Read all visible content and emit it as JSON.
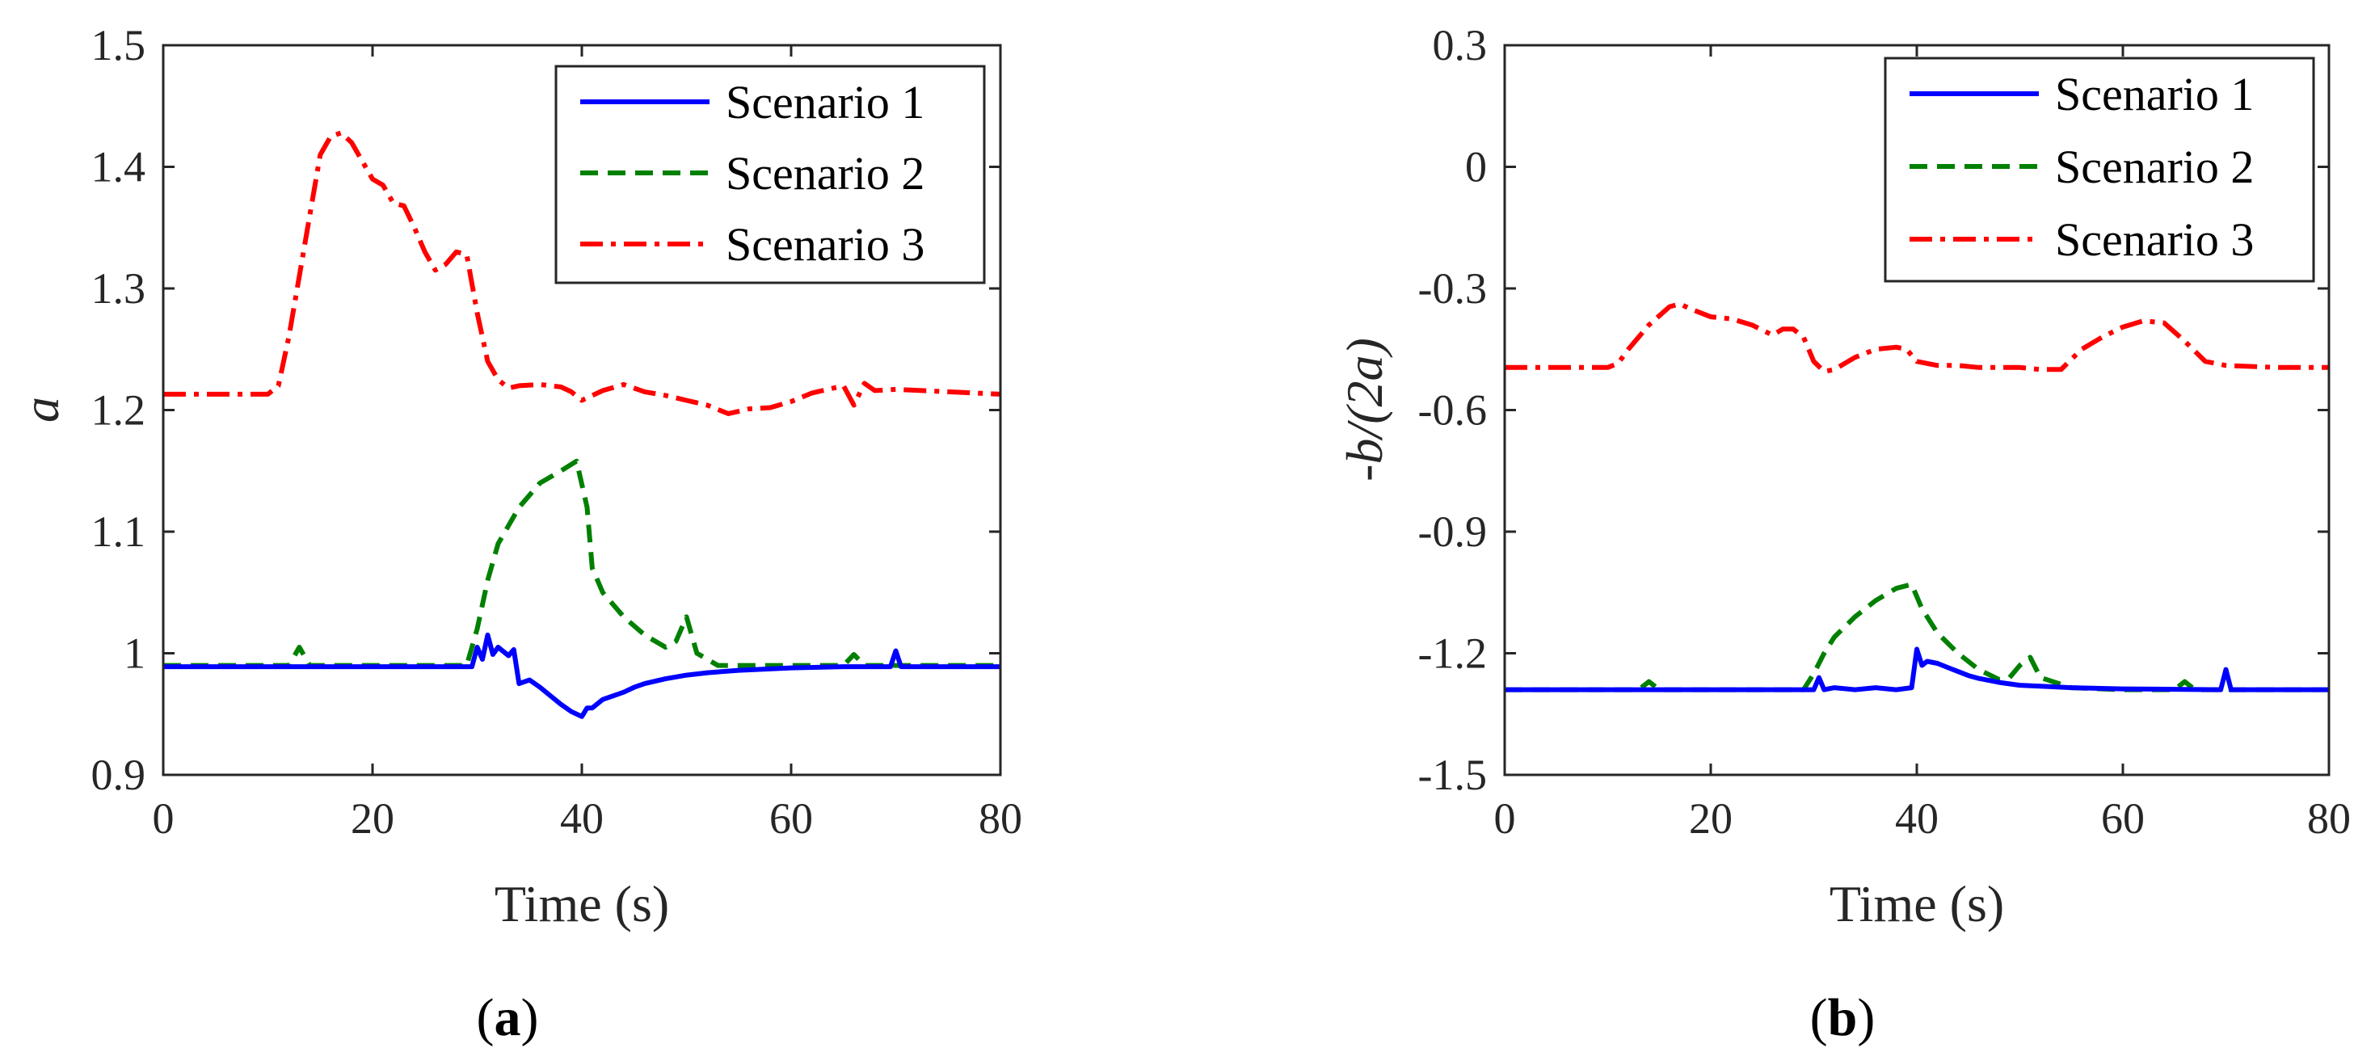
{
  "chart_data": [
    {
      "type": "line",
      "panel_label": {
        "prefix": "(",
        "letter": "a",
        "suffix": ")"
      },
      "xlabel": "Time (s)",
      "ylabel": "a",
      "xlim": [
        0,
        80
      ],
      "ylim": [
        0.9,
        1.5
      ],
      "xticks": [
        0,
        20,
        40,
        60,
        80
      ],
      "yticks": [
        0.9,
        1.0,
        1.1,
        1.2,
        1.3,
        1.4,
        1.5
      ],
      "ytick_labels": [
        "0.9",
        "1",
        "1.1",
        "1.2",
        "1.3",
        "1.4",
        "1.5"
      ],
      "legend_position": "top-right",
      "series": [
        {
          "name": "Scenario 1",
          "color": "#0000ff",
          "style": "solid",
          "x": [
            0,
            5,
            10,
            15,
            20,
            25,
            29.5,
            30,
            30.5,
            31,
            31.5,
            32,
            33,
            33.5,
            34,
            35,
            36,
            37,
            38,
            39,
            40,
            40.5,
            41,
            42,
            43,
            44,
            45,
            46,
            48,
            50,
            52,
            55,
            60,
            65,
            69.5,
            70,
            70.5,
            75,
            80
          ],
          "y": [
            0.989,
            0.989,
            0.989,
            0.989,
            0.989,
            0.989,
            0.989,
            1.005,
            0.995,
            1.015,
            0.999,
            1.005,
            0.998,
            1.003,
            0.975,
            0.978,
            0.972,
            0.965,
            0.958,
            0.952,
            0.948,
            0.955,
            0.955,
            0.962,
            0.965,
            0.968,
            0.972,
            0.975,
            0.979,
            0.982,
            0.984,
            0.986,
            0.988,
            0.989,
            0.989,
            1.002,
            0.989,
            0.989,
            0.989
          ]
        },
        {
          "name": "Scenario 2",
          "color": "#008000",
          "style": "dashed",
          "x": [
            0,
            5,
            10,
            12,
            13,
            14,
            15,
            20,
            25,
            28,
            29,
            30,
            31,
            32,
            34,
            36,
            38,
            39.5,
            40.5,
            41,
            42,
            44,
            46,
            48,
            49,
            50,
            51,
            52,
            53,
            55,
            60,
            65,
            66,
            67,
            70,
            75,
            80
          ],
          "y": [
            0.99,
            0.99,
            0.99,
            0.99,
            1.005,
            0.99,
            0.99,
            0.99,
            0.99,
            0.99,
            0.99,
            1.02,
            1.06,
            1.09,
            1.12,
            1.14,
            1.15,
            1.158,
            1.12,
            1.07,
            1.05,
            1.03,
            1.015,
            1.005,
            1.01,
            1.03,
            1.0,
            0.995,
            0.99,
            0.99,
            0.99,
            0.99,
            0.999,
            0.99,
            0.99,
            0.99,
            0.99
          ]
        },
        {
          "name": "Scenario 3",
          "color": "#ff0000",
          "style": "dashdot",
          "x": [
            0,
            5,
            10,
            11,
            12,
            13,
            14,
            15,
            16,
            17,
            18,
            19,
            20,
            21,
            22,
            23,
            24,
            25,
            26,
            27,
            28,
            29,
            30,
            31,
            32,
            33,
            34,
            36,
            38,
            39,
            40,
            42,
            44,
            46,
            48,
            50,
            52,
            54,
            56,
            58,
            60,
            62,
            64,
            65,
            66,
            67,
            68,
            70,
            75,
            80
          ],
          "y": [
            1.213,
            1.213,
            1.213,
            1.22,
            1.26,
            1.31,
            1.36,
            1.41,
            1.425,
            1.428,
            1.42,
            1.405,
            1.39,
            1.385,
            1.37,
            1.368,
            1.35,
            1.33,
            1.315,
            1.32,
            1.33,
            1.328,
            1.28,
            1.24,
            1.225,
            1.218,
            1.22,
            1.221,
            1.219,
            1.215,
            1.208,
            1.216,
            1.221,
            1.215,
            1.212,
            1.208,
            1.204,
            1.197,
            1.201,
            1.202,
            1.207,
            1.214,
            1.218,
            1.22,
            1.204,
            1.222,
            1.216,
            1.217,
            1.215,
            1.213
          ]
        }
      ]
    },
    {
      "type": "line",
      "panel_label": {
        "prefix": "(",
        "letter": "b",
        "suffix": ")"
      },
      "xlabel": "Time (s)",
      "ylabel": "-b/(2a)",
      "xlim": [
        0,
        80
      ],
      "ylim": [
        -1.5,
        0.3
      ],
      "xticks": [
        0,
        20,
        40,
        60,
        80
      ],
      "yticks": [
        -1.5,
        -1.2,
        -0.9,
        -0.6,
        -0.3,
        0,
        0.3
      ],
      "ytick_labels": [
        "-1.5",
        "-1.2",
        "-0.9",
        "-0.6",
        "-0.3",
        "0",
        "0.3"
      ],
      "legend_position": "top-right",
      "series": [
        {
          "name": "Scenario 1",
          "color": "#0000ff",
          "style": "solid",
          "x": [
            0,
            5,
            10,
            20,
            30,
            30.5,
            31,
            32,
            34,
            36,
            38,
            39.5,
            40,
            40.5,
            41,
            42,
            43,
            44,
            45,
            46,
            48,
            50,
            55,
            60,
            65,
            69.5,
            70,
            70.5,
            75,
            80
          ],
          "y": [
            -1.29,
            -1.29,
            -1.29,
            -1.29,
            -1.29,
            -1.26,
            -1.29,
            -1.285,
            -1.29,
            -1.285,
            -1.29,
            -1.285,
            -1.19,
            -1.23,
            -1.22,
            -1.225,
            -1.235,
            -1.245,
            -1.255,
            -1.262,
            -1.272,
            -1.279,
            -1.285,
            -1.288,
            -1.289,
            -1.29,
            -1.24,
            -1.29,
            -1.29,
            -1.29
          ]
        },
        {
          "name": "Scenario 2",
          "color": "#008000",
          "style": "dashed",
          "x": [
            0,
            5,
            10,
            13,
            14,
            15,
            20,
            28,
            29,
            30,
            31,
            32,
            34,
            36,
            38,
            39.5,
            40.5,
            42,
            44,
            46,
            48,
            49,
            50,
            51,
            52,
            55,
            60,
            65,
            66,
            67,
            70,
            75,
            80
          ],
          "y": [
            -1.29,
            -1.29,
            -1.29,
            -1.29,
            -1.27,
            -1.29,
            -1.29,
            -1.29,
            -1.29,
            -1.25,
            -1.2,
            -1.16,
            -1.11,
            -1.07,
            -1.04,
            -1.03,
            -1.09,
            -1.15,
            -1.2,
            -1.24,
            -1.265,
            -1.26,
            -1.23,
            -1.21,
            -1.26,
            -1.285,
            -1.29,
            -1.29,
            -1.27,
            -1.29,
            -1.29,
            -1.29,
            -1.29
          ]
        },
        {
          "name": "Scenario 3",
          "color": "#ff0000",
          "style": "dashdot",
          "x": [
            0,
            5,
            10,
            11,
            12,
            14,
            16,
            17,
            18,
            20,
            22,
            24,
            26,
            27,
            28,
            29,
            30,
            31,
            32,
            33,
            34,
            36,
            38,
            39,
            40,
            42,
            44,
            46,
            48,
            50,
            52,
            54,
            56,
            58,
            60,
            62,
            64,
            66,
            68,
            70,
            75,
            80
          ],
          "y": [
            -0.495,
            -0.495,
            -0.495,
            -0.485,
            -0.45,
            -0.39,
            -0.345,
            -0.338,
            -0.35,
            -0.37,
            -0.375,
            -0.39,
            -0.415,
            -0.4,
            -0.4,
            -0.42,
            -0.48,
            -0.505,
            -0.5,
            -0.485,
            -0.47,
            -0.45,
            -0.445,
            -0.45,
            -0.48,
            -0.49,
            -0.49,
            -0.495,
            -0.495,
            -0.495,
            -0.5,
            -0.5,
            -0.45,
            -0.42,
            -0.395,
            -0.38,
            -0.385,
            -0.43,
            -0.48,
            -0.49,
            -0.495,
            -0.495
          ]
        }
      ]
    }
  ]
}
